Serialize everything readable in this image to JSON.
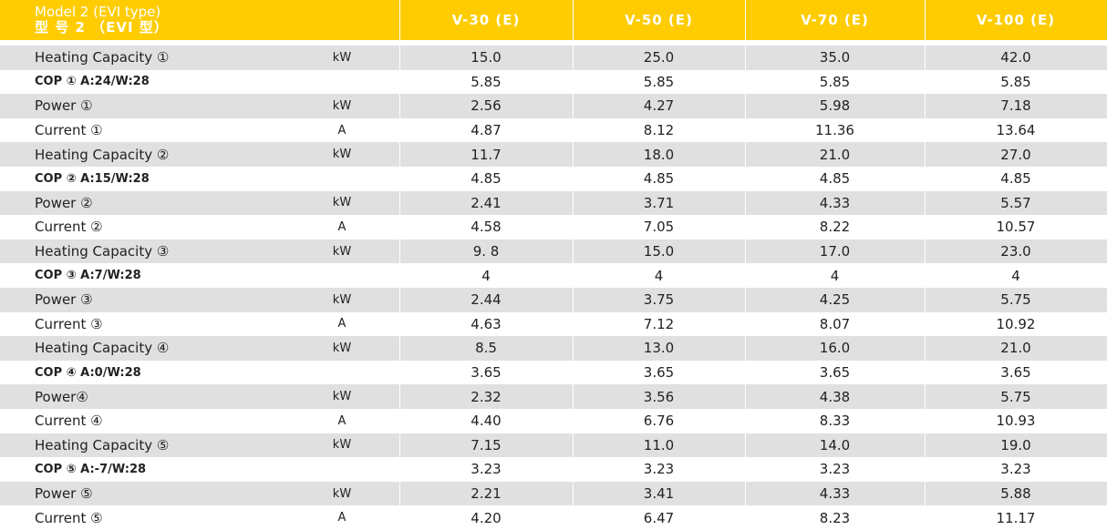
{
  "header": {
    "title_en": "Model 2 (EVI type)",
    "title_zh": "型 号 2 （EVI 型）",
    "models": [
      "V-30 (E)",
      "V-50 (E)",
      "V-70 (E)",
      "V-100 (E)"
    ],
    "colors": {
      "header_bg": "#FECC00",
      "header_text": "#FFFFFF",
      "row_alt": "#E0E0E0"
    }
  },
  "rows": [
    {
      "label": "Heating Capacity ①",
      "unit": "kW",
      "values": [
        "15.0",
        "25.0",
        "35.0",
        "42.0"
      ],
      "bold": false
    },
    {
      "label": "COP ① A:24/W:28",
      "unit": "",
      "values": [
        "5.85",
        "5.85",
        "5.85",
        "5.85"
      ],
      "bold": true
    },
    {
      "label": "Power ①",
      "unit": "kW",
      "values": [
        "2.56",
        "4.27",
        "5.98",
        "7.18"
      ],
      "bold": false
    },
    {
      "label": "Current ①",
      "unit": "A",
      "values": [
        "4.87",
        "8.12",
        "11.36",
        "13.64"
      ],
      "bold": false
    },
    {
      "label": "Heating Capacity ②",
      "unit": "kW",
      "values": [
        "11.7",
        "18.0",
        "21.0",
        "27.0"
      ],
      "bold": false
    },
    {
      "label": "COP ② A:15/W:28",
      "unit": "",
      "values": [
        "4.85",
        "4.85",
        "4.85",
        "4.85"
      ],
      "bold": true
    },
    {
      "label": "Power ②",
      "unit": "kW",
      "values": [
        "2.41",
        "3.71",
        "4.33",
        "5.57"
      ],
      "bold": false
    },
    {
      "label": "Current ②",
      "unit": "A",
      "values": [
        "4.58",
        "7.05",
        "8.22",
        "10.57"
      ],
      "bold": false
    },
    {
      "label": "Heating Capacity ③",
      "unit": "kW",
      "values": [
        "9. 8",
        "15.0",
        "17.0",
        "23.0"
      ],
      "bold": false
    },
    {
      "label": "COP ③ A:7/W:28",
      "unit": "",
      "values": [
        "4",
        "4",
        "4",
        "4"
      ],
      "bold": true
    },
    {
      "label": "Power ③",
      "unit": "kW",
      "values": [
        "2.44",
        "3.75",
        "4.25",
        "5.75"
      ],
      "bold": false
    },
    {
      "label": "Current ③",
      "unit": "A",
      "values": [
        "4.63",
        "7.12",
        "8.07",
        "10.92"
      ],
      "bold": false
    },
    {
      "label": "Heating Capacity ④",
      "unit": "kW",
      "values": [
        "8.5",
        "13.0",
        "16.0",
        "21.0"
      ],
      "bold": false
    },
    {
      "label": "COP ④ A:0/W:28",
      "unit": "",
      "values": [
        "3.65",
        "3.65",
        "3.65",
        "3.65"
      ],
      "bold": true
    },
    {
      "label": "Power④",
      "unit": "kW",
      "values": [
        "2.32",
        "3.56",
        "4.38",
        "5.75"
      ],
      "bold": false
    },
    {
      "label": "Current ④",
      "unit": "A",
      "values": [
        "4.40",
        "6.76",
        "8.33",
        "10.93"
      ],
      "bold": false
    },
    {
      "label": "Heating Capacity ⑤",
      "unit": "kW",
      "values": [
        "7.15",
        "11.0",
        "14.0",
        "19.0"
      ],
      "bold": false
    },
    {
      "label": "COP ⑤ A:-7/W:28",
      "unit": "",
      "values": [
        "3.23",
        "3.23",
        "3.23",
        "3.23"
      ],
      "bold": true
    },
    {
      "label": "Power ⑤",
      "unit": "kW",
      "values": [
        "2.21",
        "3.41",
        "4.33",
        "5.88"
      ],
      "bold": false
    },
    {
      "label": "Current ⑤",
      "unit": "A",
      "values": [
        "4.20",
        "6.47",
        "8.23",
        "11.17"
      ],
      "bold": false
    }
  ]
}
